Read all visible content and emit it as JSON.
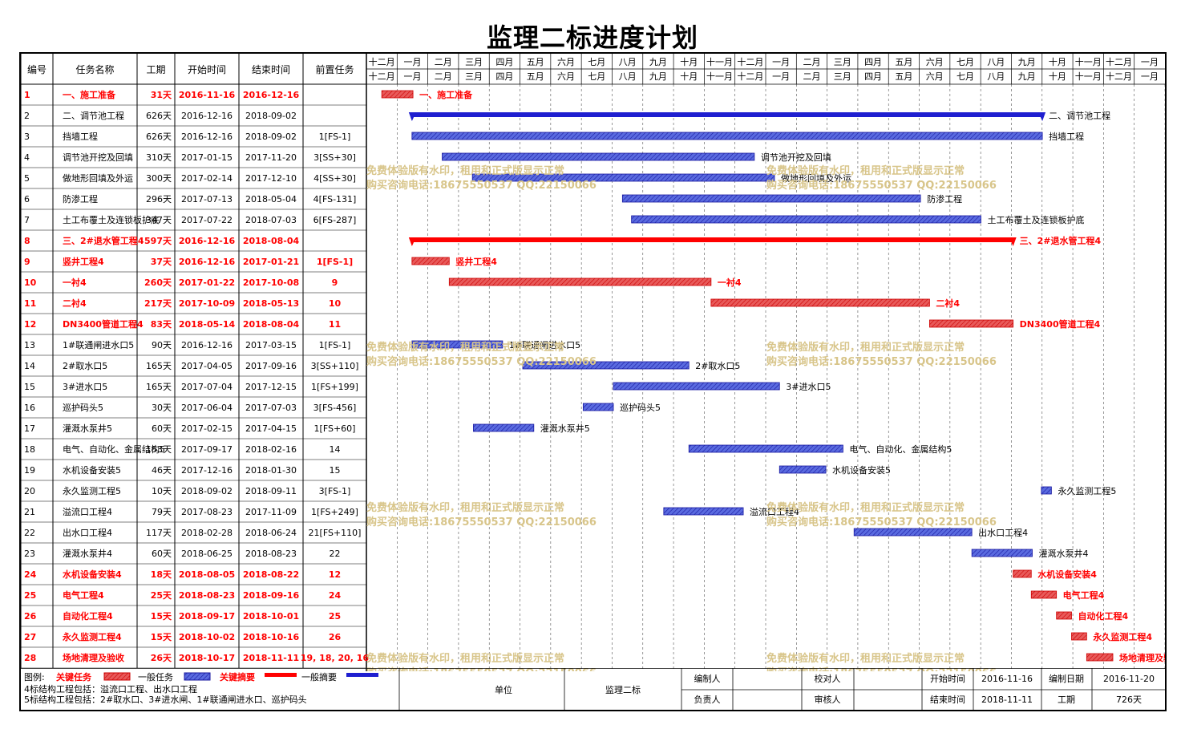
{
  "title": "监理二标进度计划",
  "table": {
    "headers": [
      "编号",
      "任务名称",
      "工期",
      "开始时间",
      "结束时间",
      "前置任务"
    ],
    "rows": [
      {
        "id": "1",
        "name": "一、施工准备",
        "dur": "31天",
        "start": "2016-11-16",
        "end": "2016-12-16",
        "pred": "",
        "type": "crit",
        "s": 0,
        "d": 31,
        "label": "一、施工准备"
      },
      {
        "id": "2",
        "name": "二、调节池工程",
        "dur": "626天",
        "start": "2016-12-16",
        "end": "2018-09-02",
        "pred": "",
        "type": "summary",
        "s": 30,
        "d": 626,
        "label": "二、调节池工程"
      },
      {
        "id": "3",
        "name": "挡墙工程",
        "dur": "626天",
        "start": "2016-12-16",
        "end": "2018-09-02",
        "pred": "1[FS-1]",
        "type": "normal",
        "s": 30,
        "d": 626,
        "label": "挡墙工程"
      },
      {
        "id": "4",
        "name": "调节池开挖及回填",
        "dur": "310天",
        "start": "2017-01-15",
        "end": "2017-11-20",
        "pred": "3[SS+30]",
        "type": "normal",
        "s": 60,
        "d": 310,
        "label": "调节池开挖及回填"
      },
      {
        "id": "5",
        "name": "做地形回填及外运",
        "dur": "300天",
        "start": "2017-02-14",
        "end": "2017-12-10",
        "pred": "4[SS+30]",
        "type": "normal",
        "s": 90,
        "d": 300,
        "label": "做地形回填及外运"
      },
      {
        "id": "6",
        "name": "防渗工程",
        "dur": "296天",
        "start": "2017-07-13",
        "end": "2018-05-04",
        "pred": "4[FS-131]",
        "type": "normal",
        "s": 239,
        "d": 296,
        "label": "防渗工程"
      },
      {
        "id": "7",
        "name": "土工布覆土及连锁板护底",
        "dur": "347天",
        "start": "2017-07-22",
        "end": "2018-07-03",
        "pred": "6[FS-287]",
        "type": "normal",
        "s": 248,
        "d": 347,
        "label": "土工布覆土及连锁板护底"
      },
      {
        "id": "8",
        "name": "三、2#退水管工程4",
        "dur": "597天",
        "start": "2016-12-16",
        "end": "2018-08-04",
        "pred": "",
        "type": "critsum",
        "s": 30,
        "d": 597,
        "label": "三、2#退水管工程4"
      },
      {
        "id": "9",
        "name": "竖井工程4",
        "dur": "37天",
        "start": "2016-12-16",
        "end": "2017-01-21",
        "pred": "1[FS-1]",
        "type": "crit",
        "s": 30,
        "d": 37,
        "label": "竖井工程4"
      },
      {
        "id": "10",
        "name": "一衬4",
        "dur": "260天",
        "start": "2017-01-22",
        "end": "2017-10-08",
        "pred": "9",
        "type": "crit",
        "s": 67,
        "d": 260,
        "label": "一衬4"
      },
      {
        "id": "11",
        "name": "二衬4",
        "dur": "217天",
        "start": "2017-10-09",
        "end": "2018-05-13",
        "pred": "10",
        "type": "crit",
        "s": 327,
        "d": 217,
        "label": "二衬4"
      },
      {
        "id": "12",
        "name": "DN3400管道工程4",
        "dur": "83天",
        "start": "2018-05-14",
        "end": "2018-08-04",
        "pred": "11",
        "type": "crit",
        "s": 544,
        "d": 83,
        "label": "DN3400管道工程4"
      },
      {
        "id": "13",
        "name": "1#联通闸进水口5",
        "dur": "90天",
        "start": "2016-12-16",
        "end": "2017-03-15",
        "pred": "1[FS-1]",
        "type": "normal",
        "s": 30,
        "d": 90,
        "label": "1#联通闸进水口5"
      },
      {
        "id": "14",
        "name": "2#取水口5",
        "dur": "165天",
        "start": "2017-04-05",
        "end": "2017-09-16",
        "pred": "3[SS+110]",
        "type": "normal",
        "s": 140,
        "d": 165,
        "label": "2#取水口5"
      },
      {
        "id": "15",
        "name": "3#进水口5",
        "dur": "165天",
        "start": "2017-07-04",
        "end": "2017-12-15",
        "pred": "1[FS+199]",
        "type": "normal",
        "s": 230,
        "d": 165,
        "label": "3#进水口5"
      },
      {
        "id": "16",
        "name": "巡护码头5",
        "dur": "30天",
        "start": "2017-06-04",
        "end": "2017-07-03",
        "pred": "3[FS-456]",
        "type": "normal",
        "s": 200,
        "d": 30,
        "label": "巡护码头5"
      },
      {
        "id": "17",
        "name": "灌溉水泵井5",
        "dur": "60天",
        "start": "2017-02-15",
        "end": "2017-04-15",
        "pred": "1[FS+60]",
        "type": "normal",
        "s": 91,
        "d": 60,
        "label": "灌溉水泵井5"
      },
      {
        "id": "18",
        "name": "电气、自动化、金属结构5",
        "dur": "153天",
        "start": "2017-09-17",
        "end": "2018-02-16",
        "pred": "14",
        "type": "normal",
        "s": 305,
        "d": 153,
        "label": "电气、自动化、金属结构5"
      },
      {
        "id": "19",
        "name": "水机设备安装5",
        "dur": "46天",
        "start": "2017-12-16",
        "end": "2018-01-30",
        "pred": "15",
        "type": "normal",
        "s": 395,
        "d": 46,
        "label": "水机设备安装5"
      },
      {
        "id": "20",
        "name": "永久监测工程5",
        "dur": "10天",
        "start": "2018-09-02",
        "end": "2018-09-11",
        "pred": "3[FS-1]",
        "type": "normal",
        "s": 655,
        "d": 10,
        "label": "永久监测工程5"
      },
      {
        "id": "21",
        "name": "溢流口工程4",
        "dur": "79天",
        "start": "2017-08-23",
        "end": "2017-11-09",
        "pred": "1[FS+249]",
        "type": "normal",
        "s": 280,
        "d": 79,
        "label": "溢流口工程4"
      },
      {
        "id": "22",
        "name": "出水口工程4",
        "dur": "117天",
        "start": "2018-02-28",
        "end": "2018-06-24",
        "pred": "21[FS+110]",
        "type": "normal",
        "s": 469,
        "d": 117,
        "label": "出水口工程4"
      },
      {
        "id": "23",
        "name": "灌溉水泵井4",
        "dur": "60天",
        "start": "2018-06-25",
        "end": "2018-08-23",
        "pred": "22",
        "type": "normal",
        "s": 586,
        "d": 60,
        "label": "灌溉水泵井4"
      },
      {
        "id": "24",
        "name": "水机设备安装4",
        "dur": "18天",
        "start": "2018-08-05",
        "end": "2018-08-22",
        "pred": "12",
        "type": "crit",
        "s": 627,
        "d": 18,
        "label": "水机设备安装4"
      },
      {
        "id": "25",
        "name": "电气工程4",
        "dur": "25天",
        "start": "2018-08-23",
        "end": "2018-09-16",
        "pred": "24",
        "type": "crit",
        "s": 645,
        "d": 25,
        "label": "电气工程4"
      },
      {
        "id": "26",
        "name": "自动化工程4",
        "dur": "15天",
        "start": "2018-09-17",
        "end": "2018-10-01",
        "pred": "25",
        "type": "crit",
        "s": 670,
        "d": 15,
        "label": "自动化工程4"
      },
      {
        "id": "27",
        "name": "永久监测工程4",
        "dur": "15天",
        "start": "2018-10-02",
        "end": "2018-10-16",
        "pred": "26",
        "type": "crit",
        "s": 685,
        "d": 15,
        "label": "永久监测工程4"
      },
      {
        "id": "28",
        "name": "场地清理及验收",
        "dur": "26天",
        "start": "2018-10-17",
        "end": "2018-11-11",
        "pred": "19, 18, 20, 16",
        "type": "crit",
        "s": 700,
        "d": 26,
        "label": "场地清理及验收"
      }
    ]
  },
  "timeline": {
    "months": [
      "十二月",
      "一月",
      "二月",
      "三月",
      "四月",
      "五月",
      "六月",
      "七月",
      "八月",
      "九月",
      "十月",
      "十一月",
      "十二月",
      "一月",
      "二月",
      "三月",
      "四月",
      "五月",
      "六月",
      "七月",
      "八月",
      "九月",
      "十月",
      "十一月",
      "十二月",
      "一月"
    ]
  },
  "watermark": [
    "免费体验版有水印，租用和正式版显示正常",
    "购买咨询电话:18675550537 QQ:22150066"
  ],
  "legend": {
    "label": "图例:",
    "key_task": "关键任务",
    "normal_task": "一般任务",
    "key_summary": "关键摘要",
    "normal_summary": "一般摘要",
    "note1": "4标结构工程包括：溢流口工程、出水口工程",
    "note2": "5标结构工程包括：2#取水口、3#进水闸、1#联通闸进水口、巡护码头"
  },
  "footer": {
    "unit_label": "单位",
    "unit_value": "监理二标",
    "editor_label": "编制人",
    "checker_label": "校对人",
    "owner_label": "负责人",
    "reviewer_label": "审核人",
    "start_label": "开始时间",
    "start_value": "2016-11-16",
    "end_label": "结束时间",
    "end_value": "2018-11-11",
    "date_label": "编制日期",
    "date_value": "2016-11-20",
    "dur_label": "工期",
    "dur_value": "726天"
  },
  "colors": {
    "critical": "#ff0000",
    "normal": "#1f1fd0",
    "critical_fill": "#e85a5a",
    "normal_fill": "#5a6be0"
  }
}
